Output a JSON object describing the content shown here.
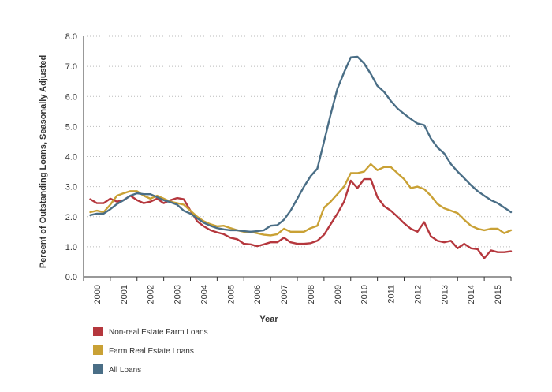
{
  "chart_data": {
    "type": "line",
    "title": "",
    "xlabel": "Year",
    "ylabel": "Percent of Outstanding Loans, Seasonally Adjusted",
    "ylim": [
      0,
      8
    ],
    "xlim": [
      2000,
      2016
    ],
    "y_ticks": [
      "0.0",
      "1.0",
      "2.0",
      "3.0",
      "4.0",
      "5.0",
      "6.0",
      "7.0",
      "8.0"
    ],
    "x_ticks": [
      "2000",
      "2001",
      "2002",
      "2003",
      "2004",
      "2005",
      "2006",
      "2007",
      "2008",
      "2009",
      "2010",
      "2011",
      "2012",
      "2013",
      "2014",
      "2015"
    ],
    "grid": "horizontal dotted",
    "legend_position": "bottom-left",
    "x": [
      2000.25,
      2000.5,
      2000.75,
      2001.0,
      2001.25,
      2001.5,
      2001.75,
      2002.0,
      2002.25,
      2002.5,
      2002.75,
      2003.0,
      2003.25,
      2003.5,
      2003.75,
      2004.0,
      2004.25,
      2004.5,
      2004.75,
      2005.0,
      2005.25,
      2005.5,
      2005.75,
      2006.0,
      2006.25,
      2006.5,
      2006.75,
      2007.0,
      2007.25,
      2007.5,
      2007.75,
      2008.0,
      2008.25,
      2008.5,
      2008.75,
      2009.0,
      2009.25,
      2009.5,
      2009.75,
      2010.0,
      2010.25,
      2010.5,
      2010.75,
      2011.0,
      2011.25,
      2011.5,
      2011.75,
      2012.0,
      2012.25,
      2012.5,
      2012.75,
      2013.0,
      2013.25,
      2013.5,
      2013.75,
      2014.0,
      2014.25,
      2014.5,
      2014.75,
      2015.0,
      2015.25,
      2015.5,
      2015.75,
      2016.0
    ],
    "series": [
      {
        "name": "Non-real Estate Farm Loans",
        "color": "#b5373d",
        "values": [
          2.58,
          2.45,
          2.45,
          2.6,
          2.5,
          2.55,
          2.7,
          2.55,
          2.45,
          2.5,
          2.6,
          2.45,
          2.55,
          2.62,
          2.58,
          2.2,
          1.85,
          1.68,
          1.55,
          1.48,
          1.42,
          1.3,
          1.25,
          1.1,
          1.08,
          1.02,
          1.08,
          1.15,
          1.15,
          1.3,
          1.15,
          1.1,
          1.1,
          1.12,
          1.2,
          1.4,
          1.75,
          2.1,
          2.5,
          3.2,
          2.95,
          3.25,
          3.25,
          2.65,
          2.35,
          2.2,
          2.0,
          1.78,
          1.6,
          1.5,
          1.82,
          1.35,
          1.2,
          1.15,
          1.2,
          0.95,
          1.1,
          0.95,
          0.92,
          0.62,
          0.88,
          0.82,
          0.82,
          0.85
        ]
      },
      {
        "name": "Farm Real Estate Loans",
        "color": "#c9a135",
        "values": [
          2.15,
          2.2,
          2.15,
          2.4,
          2.7,
          2.78,
          2.85,
          2.85,
          2.7,
          2.6,
          2.7,
          2.6,
          2.5,
          2.45,
          2.4,
          2.2,
          2.0,
          1.85,
          1.75,
          1.68,
          1.7,
          1.62,
          1.55,
          1.5,
          1.5,
          1.45,
          1.4,
          1.38,
          1.42,
          1.6,
          1.5,
          1.5,
          1.5,
          1.62,
          1.7,
          2.3,
          2.5,
          2.75,
          3.0,
          3.45,
          3.45,
          3.5,
          3.75,
          3.55,
          3.65,
          3.65,
          3.45,
          3.25,
          2.95,
          3.0,
          2.92,
          2.7,
          2.42,
          2.28,
          2.2,
          2.12,
          1.9,
          1.7,
          1.6,
          1.55,
          1.6,
          1.6,
          1.45,
          1.55
        ]
      },
      {
        "name": "All Loans",
        "color": "#4a6e86",
        "values": [
          2.05,
          2.1,
          2.1,
          2.25,
          2.42,
          2.55,
          2.7,
          2.78,
          2.75,
          2.75,
          2.65,
          2.55,
          2.48,
          2.4,
          2.2,
          2.1,
          1.95,
          1.8,
          1.7,
          1.62,
          1.58,
          1.55,
          1.55,
          1.52,
          1.5,
          1.52,
          1.55,
          1.7,
          1.72,
          1.9,
          2.2,
          2.6,
          3.0,
          3.35,
          3.6,
          4.5,
          5.4,
          6.25,
          6.8,
          7.3,
          7.32,
          7.1,
          6.75,
          6.35,
          6.15,
          5.85,
          5.6,
          5.42,
          5.25,
          5.1,
          5.05,
          4.6,
          4.3,
          4.1,
          3.75,
          3.5,
          3.28,
          3.05,
          2.85,
          2.7,
          2.55,
          2.45,
          2.3,
          2.15
        ]
      }
    ]
  }
}
